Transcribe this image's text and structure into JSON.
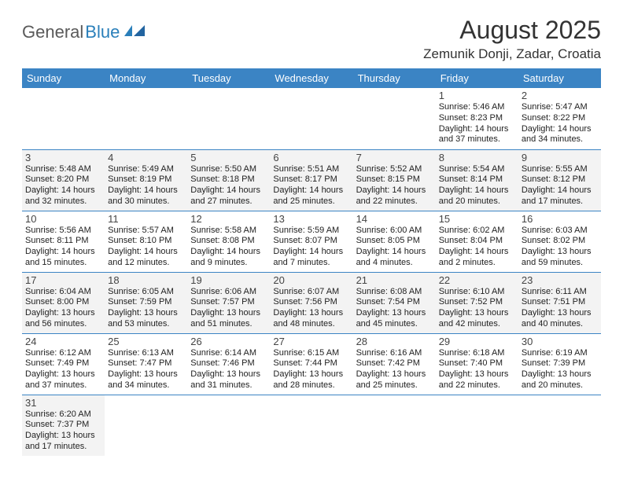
{
  "logo": {
    "part1": "General",
    "part2": "Blue"
  },
  "title": "August 2025",
  "location": "Zemunik Donji, Zadar, Croatia",
  "columns": [
    "Sunday",
    "Monday",
    "Tuesday",
    "Wednesday",
    "Thursday",
    "Friday",
    "Saturday"
  ],
  "colors": {
    "header_bg": "#3b84c4",
    "accent": "#2a7fba"
  },
  "weeks": [
    [
      null,
      null,
      null,
      null,
      null,
      {
        "n": "1",
        "sr": "5:46 AM",
        "ss": "8:23 PM",
        "dl": "14 hours and 37 minutes."
      },
      {
        "n": "2",
        "sr": "5:47 AM",
        "ss": "8:22 PM",
        "dl": "14 hours and 34 minutes."
      }
    ],
    [
      {
        "n": "3",
        "sr": "5:48 AM",
        "ss": "8:20 PM",
        "dl": "14 hours and 32 minutes.",
        "sh": true
      },
      {
        "n": "4",
        "sr": "5:49 AM",
        "ss": "8:19 PM",
        "dl": "14 hours and 30 minutes.",
        "sh": true
      },
      {
        "n": "5",
        "sr": "5:50 AM",
        "ss": "8:18 PM",
        "dl": "14 hours and 27 minutes.",
        "sh": true
      },
      {
        "n": "6",
        "sr": "5:51 AM",
        "ss": "8:17 PM",
        "dl": "14 hours and 25 minutes.",
        "sh": true
      },
      {
        "n": "7",
        "sr": "5:52 AM",
        "ss": "8:15 PM",
        "dl": "14 hours and 22 minutes.",
        "sh": true
      },
      {
        "n": "8",
        "sr": "5:54 AM",
        "ss": "8:14 PM",
        "dl": "14 hours and 20 minutes.",
        "sh": true
      },
      {
        "n": "9",
        "sr": "5:55 AM",
        "ss": "8:12 PM",
        "dl": "14 hours and 17 minutes.",
        "sh": true
      }
    ],
    [
      {
        "n": "10",
        "sr": "5:56 AM",
        "ss": "8:11 PM",
        "dl": "14 hours and 15 minutes."
      },
      {
        "n": "11",
        "sr": "5:57 AM",
        "ss": "8:10 PM",
        "dl": "14 hours and 12 minutes."
      },
      {
        "n": "12",
        "sr": "5:58 AM",
        "ss": "8:08 PM",
        "dl": "14 hours and 9 minutes."
      },
      {
        "n": "13",
        "sr": "5:59 AM",
        "ss": "8:07 PM",
        "dl": "14 hours and 7 minutes."
      },
      {
        "n": "14",
        "sr": "6:00 AM",
        "ss": "8:05 PM",
        "dl": "14 hours and 4 minutes."
      },
      {
        "n": "15",
        "sr": "6:02 AM",
        "ss": "8:04 PM",
        "dl": "14 hours and 2 minutes."
      },
      {
        "n": "16",
        "sr": "6:03 AM",
        "ss": "8:02 PM",
        "dl": "13 hours and 59 minutes."
      }
    ],
    [
      {
        "n": "17",
        "sr": "6:04 AM",
        "ss": "8:00 PM",
        "dl": "13 hours and 56 minutes.",
        "sh": true
      },
      {
        "n": "18",
        "sr": "6:05 AM",
        "ss": "7:59 PM",
        "dl": "13 hours and 53 minutes.",
        "sh": true
      },
      {
        "n": "19",
        "sr": "6:06 AM",
        "ss": "7:57 PM",
        "dl": "13 hours and 51 minutes.",
        "sh": true
      },
      {
        "n": "20",
        "sr": "6:07 AM",
        "ss": "7:56 PM",
        "dl": "13 hours and 48 minutes.",
        "sh": true
      },
      {
        "n": "21",
        "sr": "6:08 AM",
        "ss": "7:54 PM",
        "dl": "13 hours and 45 minutes.",
        "sh": true
      },
      {
        "n": "22",
        "sr": "6:10 AM",
        "ss": "7:52 PM",
        "dl": "13 hours and 42 minutes.",
        "sh": true
      },
      {
        "n": "23",
        "sr": "6:11 AM",
        "ss": "7:51 PM",
        "dl": "13 hours and 40 minutes.",
        "sh": true
      }
    ],
    [
      {
        "n": "24",
        "sr": "6:12 AM",
        "ss": "7:49 PM",
        "dl": "13 hours and 37 minutes."
      },
      {
        "n": "25",
        "sr": "6:13 AM",
        "ss": "7:47 PM",
        "dl": "13 hours and 34 minutes."
      },
      {
        "n": "26",
        "sr": "6:14 AM",
        "ss": "7:46 PM",
        "dl": "13 hours and 31 minutes."
      },
      {
        "n": "27",
        "sr": "6:15 AM",
        "ss": "7:44 PM",
        "dl": "13 hours and 28 minutes."
      },
      {
        "n": "28",
        "sr": "6:16 AM",
        "ss": "7:42 PM",
        "dl": "13 hours and 25 minutes."
      },
      {
        "n": "29",
        "sr": "6:18 AM",
        "ss": "7:40 PM",
        "dl": "13 hours and 22 minutes."
      },
      {
        "n": "30",
        "sr": "6:19 AM",
        "ss": "7:39 PM",
        "dl": "13 hours and 20 minutes."
      }
    ],
    [
      {
        "n": "31",
        "sr": "6:20 AM",
        "ss": "7:37 PM",
        "dl": "13 hours and 17 minutes.",
        "sh": true
      },
      null,
      null,
      null,
      null,
      null,
      null
    ]
  ],
  "labels": {
    "sunrise": "Sunrise: ",
    "sunset": "Sunset: ",
    "daylight": "Daylight: "
  }
}
